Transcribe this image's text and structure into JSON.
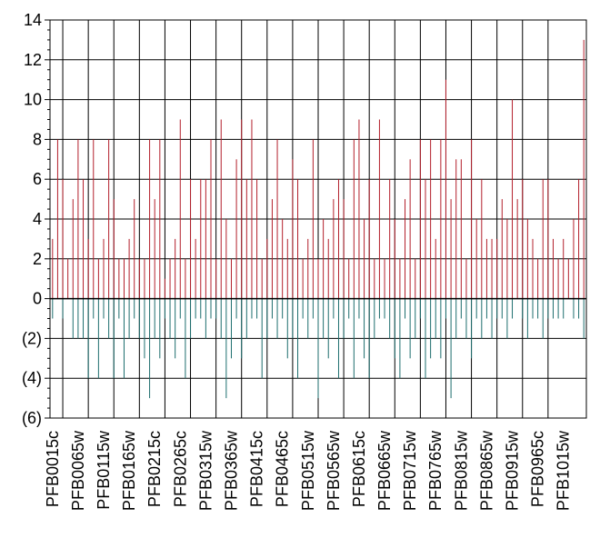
{
  "chart_data": {
    "type": "bar",
    "categories": [
      "PFB0015c",
      null,
      null,
      null,
      null,
      "PFB0065w",
      null,
      null,
      null,
      null,
      "PFB0115w",
      null,
      null,
      null,
      null,
      "PFB0165w",
      null,
      null,
      null,
      null,
      "PFB0215c",
      null,
      null,
      null,
      null,
      "PFB0265c",
      null,
      null,
      null,
      null,
      "PFB0315w",
      null,
      null,
      null,
      null,
      "PFB0365w",
      null,
      null,
      null,
      null,
      "PFB0415c",
      null,
      null,
      null,
      null,
      "PFB0465c",
      null,
      null,
      null,
      null,
      "PFB0515w",
      null,
      null,
      null,
      null,
      "PFB0565w",
      null,
      null,
      null,
      null,
      "PFB0615c",
      null,
      null,
      null,
      null,
      "PFB0665w",
      null,
      null,
      null,
      null,
      "PFB0715w",
      null,
      null,
      null,
      null,
      "PFB0765w",
      null,
      null,
      null,
      null,
      "PFB0815w",
      null,
      null,
      null,
      null,
      "PFB0865w",
      null,
      null,
      null,
      null,
      "PFB0915w",
      null,
      null,
      null,
      null,
      "PFB0965c",
      null,
      null,
      null,
      null,
      "PFB1015w",
      null,
      null,
      null,
      null
    ],
    "series": [
      {
        "color": "#b3202c",
        "values": [
          3,
          8,
          6,
          2,
          5,
          8,
          6,
          3,
          8,
          2,
          3,
          8,
          5,
          2,
          2,
          3,
          5,
          2,
          2,
          8,
          5,
          8,
          1,
          2,
          3,
          9,
          2,
          6,
          3,
          6,
          6,
          8,
          2,
          9,
          4,
          2,
          7,
          9,
          6,
          9,
          6,
          2,
          3,
          5,
          8,
          4,
          3,
          7,
          6,
          2,
          3,
          8,
          2,
          4,
          3,
          5,
          6,
          5,
          2,
          8,
          9,
          4,
          6,
          2,
          9,
          2,
          6,
          4,
          2,
          5,
          7,
          2,
          8,
          6,
          8,
          3,
          8,
          11,
          5,
          7,
          7,
          2,
          8,
          4,
          6,
          3,
          3,
          3,
          5,
          4,
          10,
          5,
          6,
          4,
          3,
          2,
          6,
          6,
          3,
          2,
          3,
          2,
          4,
          6,
          13
        ]
      },
      {
        "color": "#1e6e6e",
        "values": [
          -1,
          0,
          -1,
          0,
          -2,
          -2,
          -2,
          -4,
          -1,
          -4,
          -1,
          -2,
          -4,
          -1,
          -4,
          -2,
          -1,
          -2,
          -3,
          -5,
          -2,
          -3,
          -1,
          -2,
          -3,
          -1,
          -4,
          -2,
          -1,
          -1,
          -2,
          -1,
          -1,
          -2,
          -5,
          -3,
          -1,
          -3,
          -2,
          -1,
          -1,
          -4,
          -2,
          -1,
          -2,
          -1,
          -3,
          -2,
          -4,
          -1,
          -2,
          -1,
          -5,
          -2,
          -3,
          -1,
          -4,
          -2,
          -1,
          -4,
          -1,
          -3,
          -4,
          -2,
          -1,
          -1,
          -2,
          -3,
          -4,
          -1,
          -3,
          -2,
          -1,
          -4,
          -3,
          -2,
          -3,
          -1,
          -5,
          -2,
          -1,
          -2,
          -3,
          -1,
          -2,
          -1,
          -2,
          -1,
          -1,
          -2,
          -1,
          0,
          -1,
          -2,
          -1,
          -1,
          -2,
          -1,
          -1,
          -1,
          -1,
          0,
          -1,
          -1,
          -2
        ]
      }
    ],
    "ylim": [
      -6,
      14
    ],
    "yticks": [
      {
        "value": -6,
        "label": "(6)"
      },
      {
        "value": -4,
        "label": "(4)"
      },
      {
        "value": -2,
        "label": "(2)"
      },
      0,
      2,
      4,
      6,
      8,
      10,
      12,
      14
    ],
    "grid": true
  }
}
